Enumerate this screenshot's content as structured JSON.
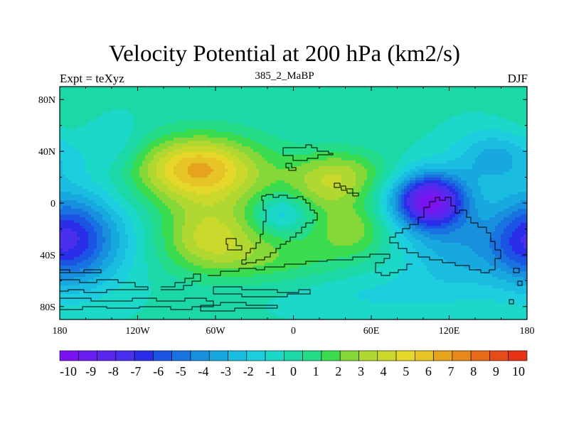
{
  "title": "Velocity Potential at 200 hPa (km2/s)",
  "left_label": "Expt = teXyz",
  "center_label": "385_2_MaBP",
  "right_label": "DJF",
  "colors": {
    "levels": [
      "#7b12f0",
      "#6a1ff0",
      "#5a26ee",
      "#4a30ec",
      "#2a2ee8",
      "#1c54e4",
      "#1873e0",
      "#1890de",
      "#18a8e0",
      "#1abde0",
      "#1ccede",
      "#1cd8c8",
      "#1cd8a8",
      "#24dc88",
      "#3cdc50",
      "#86d838",
      "#b0d830",
      "#cad82c",
      "#e6d82a",
      "#e6c426",
      "#e6a41e",
      "#e6881c",
      "#e66a1a",
      "#e64c18",
      "#e63216"
    ],
    "coast": "#000000"
  },
  "chart_data": {
    "type": "heatmap",
    "title": "Velocity Potential at 200 hPa (km2/s)",
    "left_string": "Expt = teXyz",
    "center_string": "385_2_MaBP",
    "right_string": "DJF",
    "xlim": [
      -180,
      180
    ],
    "ylim": [
      -90,
      90
    ],
    "x_tick_labels": [
      "180",
      "120W",
      "60W",
      "0",
      "60E",
      "120E",
      "180"
    ],
    "y_tick_labels": [
      "80N",
      "40N",
      "0",
      "40S",
      "80S"
    ],
    "colorbar": {
      "levels": [
        -10,
        -9,
        -8,
        -7,
        -6,
        -5,
        -4,
        -3,
        -2,
        -1,
        0,
        1,
        2,
        3,
        4,
        5,
        6,
        7,
        8,
        9,
        10
      ],
      "labels": [
        "-10",
        "-9",
        "-8",
        "-7",
        "-6",
        "-5",
        "-4",
        "-3",
        "-2",
        "-1",
        "0",
        "1",
        "2",
        "3",
        "4",
        "5",
        "6",
        "7",
        "8",
        "9",
        "10"
      ]
    },
    "base_value": -0.3,
    "features": [
      {
        "lon": -75,
        "lat": 27,
        "amp": 5.2,
        "sx": 32,
        "sy": 17
      },
      {
        "lon": -55,
        "lat": 15,
        "amp": 1.6,
        "sx": 45,
        "sy": 25
      },
      {
        "lon": 35,
        "lat": 22,
        "amp": 3.2,
        "sx": 26,
        "sy": 13
      },
      {
        "lon": -65,
        "lat": -25,
        "amp": 3.3,
        "sx": 26,
        "sy": 18
      },
      {
        "lon": -20,
        "lat": -42,
        "amp": 2.0,
        "sx": 45,
        "sy": 15
      },
      {
        "lon": 45,
        "lat": -20,
        "amp": 2.6,
        "sx": 20,
        "sy": 14
      },
      {
        "lon": 25,
        "lat": 5,
        "amp": 1.4,
        "sx": 20,
        "sy": 12
      },
      {
        "lon": -10,
        "lat": -8,
        "amp": -2.3,
        "sx": 14,
        "sy": 10
      },
      {
        "lon": 105,
        "lat": 2,
        "amp": -9.2,
        "sx": 20,
        "sy": 15
      },
      {
        "lon": 125,
        "lat": -35,
        "amp": -2.6,
        "sx": 30,
        "sy": 22
      },
      {
        "lon": 155,
        "lat": 35,
        "amp": -2.8,
        "sx": 22,
        "sy": 15
      },
      {
        "lon": 60,
        "lat": -70,
        "amp": -1.0,
        "sx": 50,
        "sy": 12
      },
      {
        "lon": -162,
        "lat": -28,
        "amp": -3.8,
        "sx": 28,
        "sy": 25
      },
      {
        "lon": 180,
        "lat": -28,
        "amp": -3.2,
        "sx": 22,
        "sy": 25
      },
      {
        "lon": -140,
        "lat": 45,
        "amp": -1.2,
        "sx": 18,
        "sy": 15
      },
      {
        "lon": -175,
        "lat": 70,
        "amp": 0.5,
        "sx": 20,
        "sy": 15
      }
    ],
    "grid": false,
    "legend": "bottom"
  }
}
